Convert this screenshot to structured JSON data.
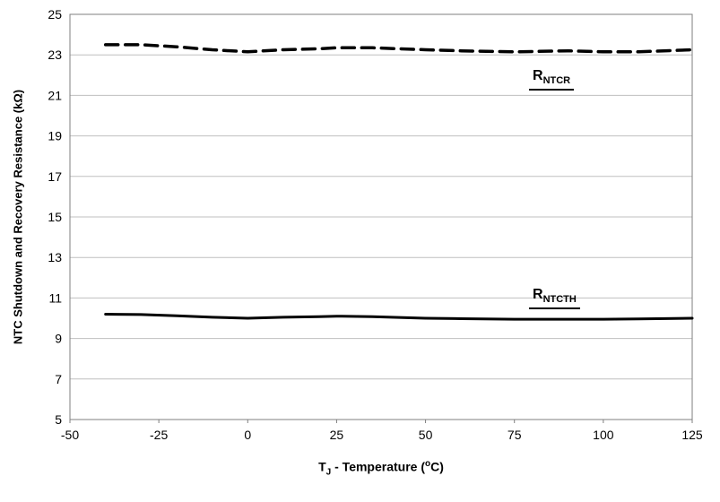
{
  "chart_data": {
    "type": "line",
    "title": "",
    "ylabel": "NTC Shutdown and Recovery Resistance (kΩ)",
    "xlabel_parts": {
      "p1": "T",
      "sub": "J",
      "p2": " - Temperature (",
      "sup": "o",
      "p3": "C)"
    },
    "xlim": [
      -50,
      125
    ],
    "ylim": [
      5,
      25
    ],
    "xticks": [
      -50,
      -25,
      0,
      25,
      50,
      75,
      100,
      125
    ],
    "yticks": [
      5,
      7,
      9,
      11,
      13,
      15,
      17,
      19,
      21,
      23,
      25
    ],
    "grid": "horizontal",
    "grid_color": "#bfbfbf",
    "border_color": "#7f7f7f",
    "x": [
      -40,
      -30,
      -20,
      -10,
      0,
      10,
      20,
      25,
      35,
      50,
      60,
      75,
      90,
      100,
      110,
      125
    ],
    "series": [
      {
        "name": "RNTCR",
        "label_main": "R",
        "label_sub": "NTCR",
        "style": "dashed",
        "color": "#000000",
        "width": 3.5,
        "dash": "14 8",
        "values": [
          23.5,
          23.5,
          23.4,
          23.25,
          23.15,
          23.25,
          23.3,
          23.35,
          23.35,
          23.25,
          23.2,
          23.15,
          23.2,
          23.15,
          23.15,
          23.25
        ]
      },
      {
        "name": "RNTCTH",
        "label_main": "R",
        "label_sub": "NTCTH",
        "style": "solid",
        "color": "#000000",
        "width": 3,
        "dash": "",
        "values": [
          10.2,
          10.18,
          10.12,
          10.05,
          10.0,
          10.05,
          10.08,
          10.1,
          10.08,
          10.0,
          9.98,
          9.95,
          9.95,
          9.95,
          9.97,
          10.0
        ]
      }
    ]
  }
}
